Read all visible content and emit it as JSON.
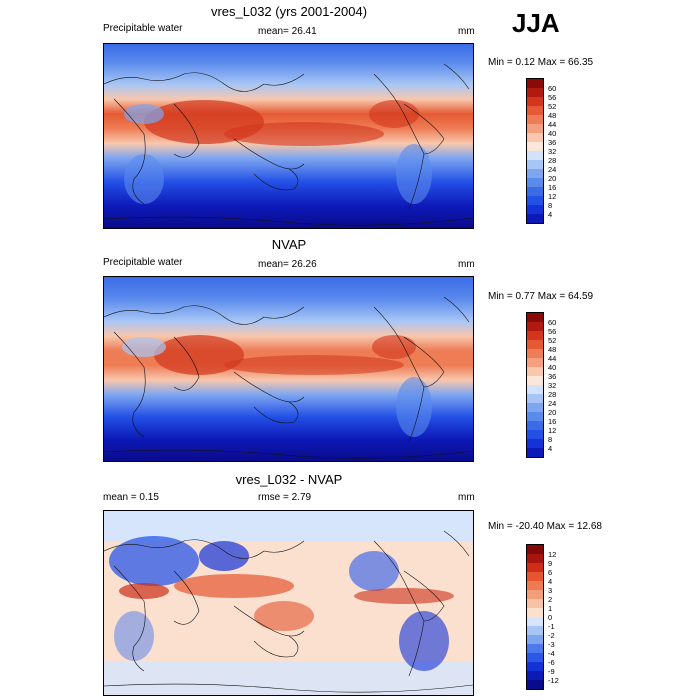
{
  "season": "JJA",
  "panels": [
    {
      "title": "vres_L032 (yrs 2001-2004)",
      "left_text": "Precipitable water",
      "center_text": "mean=  26.41",
      "units": "mm",
      "stats": "Min =   0.12 Max =  66.35",
      "colorbar_labels": [
        "60",
        "56",
        "52",
        "48",
        "44",
        "40",
        "36",
        "32",
        "28",
        "24",
        "20",
        "16",
        "12",
        "8",
        "4"
      ]
    },
    {
      "title": "NVAP",
      "left_text": "Precipitable water",
      "center_text": "mean=  26.26",
      "units": "mm",
      "stats": "Min =   0.77 Max =  64.59",
      "colorbar_labels": [
        "60",
        "56",
        "52",
        "48",
        "44",
        "40",
        "36",
        "32",
        "28",
        "24",
        "20",
        "16",
        "12",
        "8",
        "4"
      ]
    },
    {
      "title": "vres_L032 - NVAP",
      "left_text": "mean =   0.15",
      "center_text": "rmse =   2.79",
      "units": "mm",
      "stats": "Min = -20.40 Max =  12.68",
      "colorbar_labels": [
        "12",
        "9",
        "6",
        "4",
        "3",
        "2",
        "1",
        "0",
        "-1",
        "-2",
        "-3",
        "-4",
        "-6",
        "-9",
        "-12"
      ]
    }
  ],
  "colors": {
    "abs_scale": [
      "#0a0a8c",
      "#0d1ab8",
      "#1432d8",
      "#2350e6",
      "#3a6ce8",
      "#5a8aec",
      "#7ea6f0",
      "#a8c6f5",
      "#d2e2fa",
      "#fbe6da",
      "#f8c7ad",
      "#f4a07e",
      "#ee7d56",
      "#e55a34",
      "#d2361c",
      "#b01a10",
      "#8a0a0a"
    ],
    "diff_scale": [
      "#0a0a8c",
      "#0d1ab8",
      "#1432d8",
      "#2a58e8",
      "#4c7aec",
      "#7ea6f0",
      "#a8c6f5",
      "#d6e5fb",
      "#fbe0d0",
      "#f8c2a6",
      "#f49d7a",
      "#ee7a52",
      "#e45530",
      "#cc2e18",
      "#a81410",
      "#850808"
    ]
  }
}
